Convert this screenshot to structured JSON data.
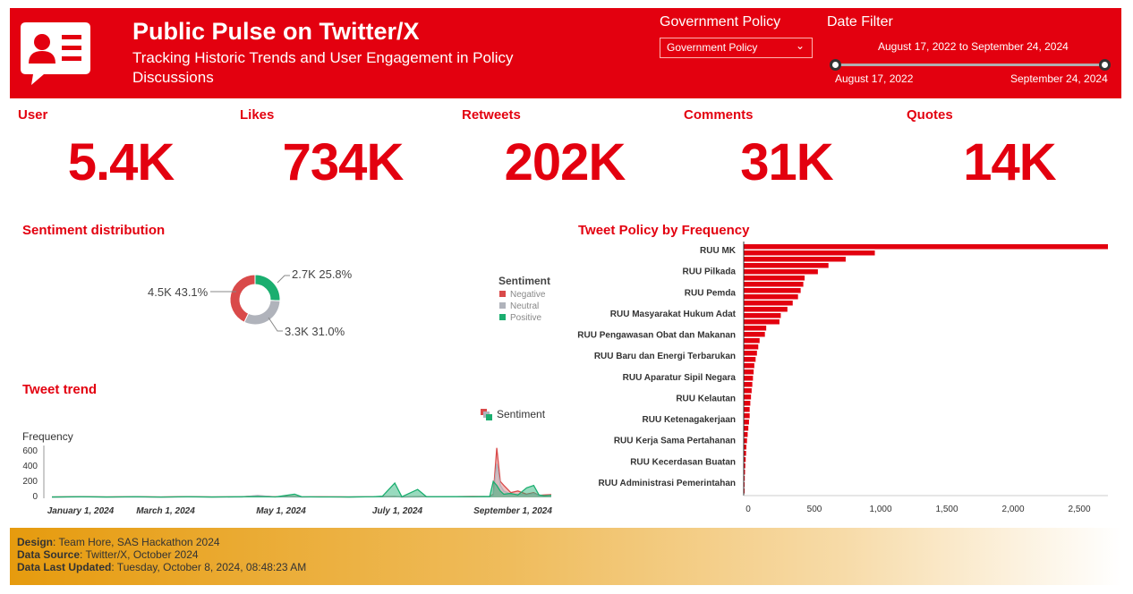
{
  "header": {
    "title": "Public Pulse on Twitter/X",
    "subtitle": "Tracking Historic Trends and User Engagement in Policy Discussions",
    "logo_icon": "user-card-icon",
    "policy_filter": {
      "label": "Government Policy",
      "selected": "Government Policy"
    },
    "date_filter": {
      "label": "Date Filter",
      "range_text": "August 17, 2022 to September 24, 2024",
      "start": "August 17, 2022",
      "end": "September 24, 2024"
    }
  },
  "colors": {
    "brand_red": "#e3000f",
    "negative": "#d94a4a",
    "neutral": "#b0b3bb",
    "positive": "#1aae6f"
  },
  "kpis": [
    {
      "label": "User",
      "value": "5.4K"
    },
    {
      "label": "Likes",
      "value": "734K"
    },
    {
      "label": "Retweets",
      "value": "202K"
    },
    {
      "label": "Comments",
      "value": "31K"
    },
    {
      "label": "Quotes",
      "value": "14K"
    }
  ],
  "sentiment": {
    "title": "Sentiment distribution",
    "legend_title": "Sentiment",
    "slices": [
      {
        "name": "Negative",
        "value": 4.5,
        "label": "4.5K 43.1%",
        "percent": 43.1
      },
      {
        "name": "Neutral",
        "value": 3.3,
        "label": "3.3K 31.0%",
        "percent": 31.0
      },
      {
        "name": "Positive",
        "value": 2.7,
        "label": "2.7K 25.8%",
        "percent": 25.8
      }
    ]
  },
  "trend": {
    "title": "Tweet trend",
    "legend_label": "Sentiment",
    "ylabel": "Frequency",
    "yticks": [
      "600",
      "400",
      "200",
      "0"
    ],
    "xticks": [
      "January 1, 2024",
      "March 1, 2024",
      "May 1, 2024",
      "July 1, 2024",
      "September 1, 2024"
    ]
  },
  "chart_data": [
    {
      "type": "pie",
      "categories": [
        "Negative",
        "Neutral",
        "Positive"
      ],
      "values": [
        4500,
        3300,
        2700
      ]
    },
    {
      "type": "area",
      "ylim": [
        0,
        650
      ],
      "x": [
        "2023-12-15",
        "2024-01-01",
        "2024-01-15",
        "2024-02-01",
        "2024-02-15",
        "2024-03-01",
        "2024-03-15",
        "2024-04-01",
        "2024-04-10",
        "2024-04-20",
        "2024-05-01",
        "2024-05-05",
        "2024-05-15",
        "2024-06-01",
        "2024-06-15",
        "2024-06-20",
        "2024-06-27",
        "2024-07-01",
        "2024-07-10",
        "2024-07-15",
        "2024-08-01",
        "2024-08-10",
        "2024-08-20",
        "2024-08-22",
        "2024-08-24",
        "2024-08-26",
        "2024-08-28",
        "2024-09-01",
        "2024-09-05",
        "2024-09-10",
        "2024-09-14",
        "2024-09-17",
        "2024-09-20",
        "2024-09-24"
      ],
      "series": [
        {
          "name": "Negative",
          "values": [
            5,
            10,
            6,
            8,
            5,
            10,
            6,
            8,
            20,
            8,
            10,
            6,
            8,
            6,
            10,
            8,
            12,
            6,
            8,
            10,
            10,
            12,
            10,
            40,
            620,
            200,
            150,
            60,
            80,
            40,
            60,
            25,
            30,
            35
          ]
        },
        {
          "name": "Neutral",
          "values": [
            3,
            6,
            4,
            5,
            3,
            6,
            4,
            5,
            25,
            6,
            6,
            5,
            6,
            5,
            8,
            6,
            10,
            5,
            6,
            8,
            8,
            10,
            8,
            30,
            420,
            150,
            80,
            40,
            40,
            30,
            50,
            20,
            20,
            25
          ]
        },
        {
          "name": "Positive",
          "values": [
            5,
            8,
            5,
            8,
            4,
            8,
            5,
            8,
            10,
            6,
            40,
            8,
            6,
            5,
            8,
            15,
            180,
            8,
            100,
            8,
            10,
            8,
            12,
            200,
            150,
            80,
            40,
            50,
            30,
            120,
            150,
            30,
            20,
            25
          ]
        }
      ]
    },
    {
      "type": "bar",
      "title": "Tweet Policy by Frequency",
      "xlim": [
        0,
        2750
      ],
      "xticks": [
        "0",
        "500",
        "1,000",
        "1,500",
        "2,000",
        "2,500"
      ],
      "visible_labels": [
        "RUU MK",
        "RUU Pilkada",
        "RUU Pemda",
        "RUU Masyarakat Hukum Adat",
        "RUU Pengawasan Obat dan Makanan",
        "RUU Baru dan Energi Terbarukan",
        "RUU Aparatur Sipil Negara",
        "RUU Kelautan",
        "RUU Ketenagakerjaan",
        "RUU Kerja Sama Pertahanan",
        "RUU Kecerdasan Buatan",
        "RUU Administrasi Pemerintahan"
      ],
      "values": [
        2750,
        990,
        770,
        640,
        560,
        460,
        450,
        430,
        410,
        370,
        330,
        280,
        270,
        170,
        160,
        120,
        110,
        100,
        90,
        80,
        75,
        70,
        65,
        60,
        55,
        50,
        45,
        45,
        40,
        35,
        30,
        25,
        20,
        18,
        15,
        12,
        10,
        8,
        6,
        5
      ]
    }
  ],
  "footer": {
    "design_label": "Design",
    "design_value": ": Team Hore, SAS Hackathon 2024",
    "source_label": "Data Source",
    "source_value": ": Twitter/X, October 2024",
    "updated_label": "Data Last Updated",
    "updated_value": ": Tuesday, October 8, 2024, 08:48:23 AM"
  }
}
